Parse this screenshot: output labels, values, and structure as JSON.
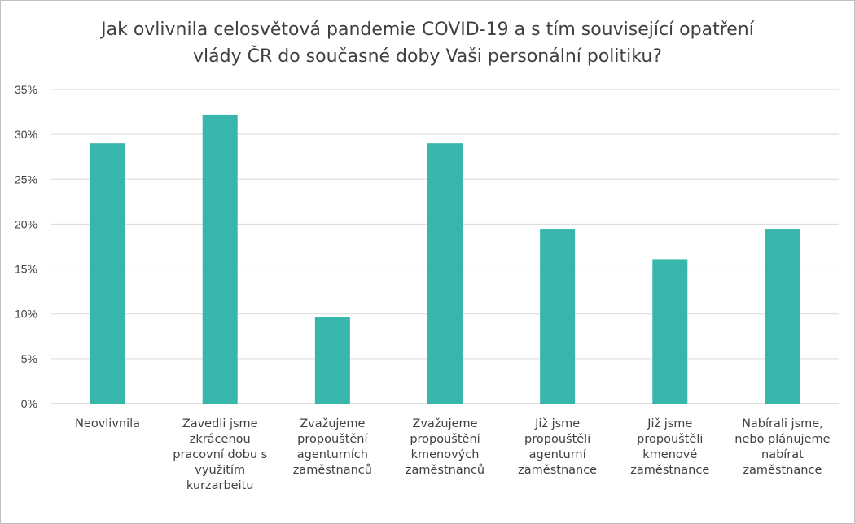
{
  "chart_data": {
    "type": "bar",
    "title": "Jak ovlivnila celosvětová pandemie COVID-19 a s tím související opatření vlády ČR do současné doby Vaši personální politiku?",
    "categories": [
      [
        "Neovlivnila"
      ],
      [
        "Zavedli jsme",
        "zkrácenou",
        "pracovní dobu s",
        "využitím",
        "kurzarbeitu"
      ],
      [
        "Zvažujeme",
        "propouštění",
        "agenturních",
        "zaměstnanců"
      ],
      [
        "Zvažujeme",
        "propouštění",
        "kmenových",
        "zaměstnanců"
      ],
      [
        "Již jsme",
        "propouštěli",
        "agenturní",
        "zaměstnance"
      ],
      [
        "Již jsme",
        "propouštěli",
        "kmenové",
        "zaměstnance"
      ],
      [
        "Nabírali jsme,",
        "nebo plánujeme",
        "nabírat",
        "zaměstnance"
      ]
    ],
    "values": [
      29.0,
      32.2,
      9.7,
      29.0,
      19.4,
      16.1,
      19.4
    ],
    "ylim": [
      0,
      35
    ],
    "yticks": [
      "0%",
      "5%",
      "10%",
      "15%",
      "20%",
      "25%",
      "30%",
      "35%"
    ],
    "bar_color": "#38b6ac",
    "grid": true,
    "xlabel": "",
    "ylabel": ""
  }
}
